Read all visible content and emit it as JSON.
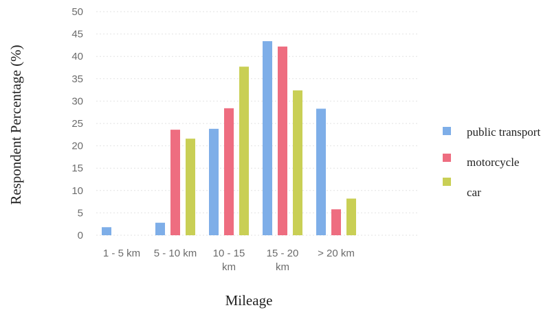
{
  "chart_data": {
    "type": "bar",
    "categories": [
      "1 - 5 km",
      "5 - 10 km",
      "10 - 15 km",
      "15 - 20 km",
      "> 20 km"
    ],
    "category_lines": [
      [
        "1 - 5 km"
      ],
      [
        "5 - 10 km"
      ],
      [
        "10 - 15",
        "km"
      ],
      [
        "15 - 20",
        "km"
      ],
      [
        "> 20 km"
      ]
    ],
    "series": [
      {
        "name": "public transport",
        "color": "#7eaee8",
        "values": [
          1.8,
          2.8,
          23.8,
          43.4,
          28.3
        ]
      },
      {
        "name": "motorcycle",
        "color": "#ee6d80",
        "values": [
          0,
          23.6,
          28.4,
          42.2,
          5.8
        ]
      },
      {
        "name": "car",
        "color": "#c9cf55",
        "values": [
          0,
          21.6,
          37.7,
          32.4,
          8.2
        ]
      }
    ],
    "xlabel": "Mileage",
    "ylabel": "Respondent Percentage (%)",
    "ylim": [
      0,
      50
    ],
    "yticks": [
      0,
      5,
      10,
      15,
      20,
      25,
      30,
      35,
      40,
      45,
      50
    ],
    "grid": true,
    "legend_position": "right"
  }
}
